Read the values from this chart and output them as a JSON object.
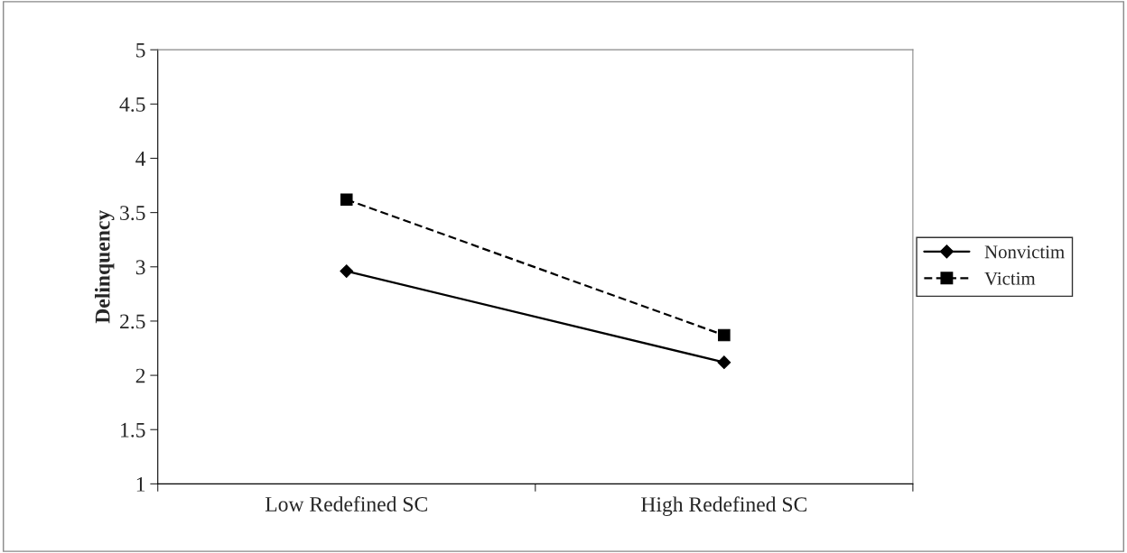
{
  "chart_data": {
    "type": "line",
    "ylabel": "Delinquency",
    "categories": [
      "Low Redefined SC",
      "High Redefined SC"
    ],
    "series": [
      {
        "name": "Nonvictim",
        "color": "#000000",
        "values": [
          2.96,
          2.12
        ],
        "marker": "diamond",
        "line_style": "solid"
      },
      {
        "name": "Victim",
        "color": "#000000",
        "values": [
          3.62,
          2.37
        ],
        "marker": "square",
        "line_style": "dashed"
      }
    ],
    "ylim": [
      1,
      5
    ],
    "yticks": [
      1,
      1.5,
      2,
      2.5,
      3,
      3.5,
      4,
      4.5,
      5
    ],
    "grid": false,
    "legend": "right"
  }
}
